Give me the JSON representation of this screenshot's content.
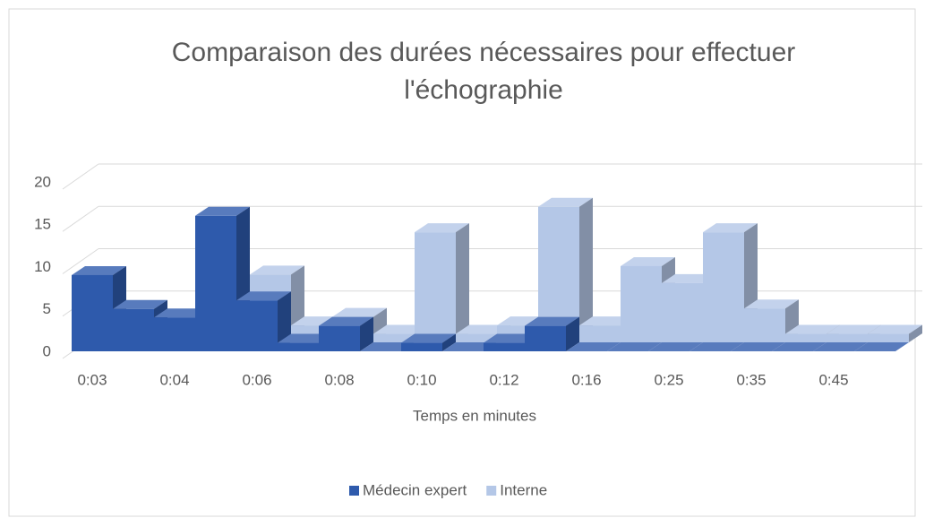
{
  "chart_data": {
    "type": "bar3d",
    "title": "Comparaison des durées nécessaires pour effectuer l'échographie",
    "x_label": "Temps en minutes",
    "categories": [
      "0:03",
      null,
      "0:04",
      null,
      "0:06",
      null,
      "0:08",
      null,
      "0:10",
      null,
      "0:12",
      null,
      "0:16",
      null,
      "0:25",
      null,
      "0:35",
      null,
      "0:45",
      null
    ],
    "series": [
      {
        "name": "Médecin expert",
        "color": "#2e5aac",
        "values": [
          9,
          5,
          4,
          16,
          6,
          1,
          3,
          0,
          1,
          0,
          1,
          3,
          0,
          0,
          0,
          0,
          0,
          0,
          0,
          0
        ]
      },
      {
        "name": "Interne",
        "color": "#b4c7e7",
        "values": [
          0,
          0,
          0,
          0,
          8,
          2,
          3,
          1,
          13,
          1,
          2,
          16,
          2,
          9,
          7,
          13,
          4,
          1,
          1,
          1
        ]
      }
    ],
    "ylim": [
      0,
      20
    ],
    "yticks": [
      0,
      5,
      10,
      15,
      20
    ],
    "grid": true
  }
}
